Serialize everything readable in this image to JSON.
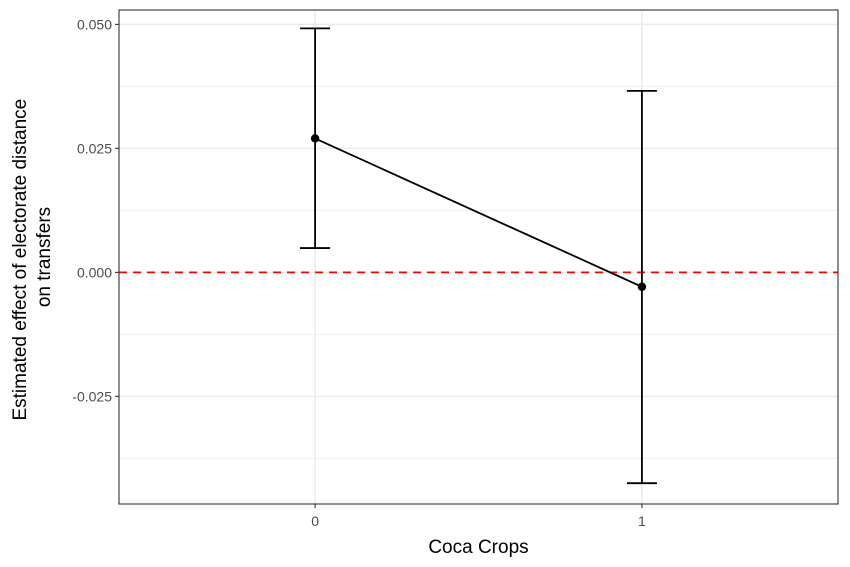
{
  "chart_data": {
    "type": "line",
    "title": "",
    "xlabel": "Coca Crops",
    "ylabel_lines": [
      "Estimated effect of electorate distance",
      "on transfers"
    ],
    "x_categories": [
      "0",
      "1"
    ],
    "x_range": [
      -0.6,
      1.6
    ],
    "y_range": [
      -0.0467,
      0.0529
    ],
    "y_ticks": [
      0.05,
      0.025,
      0.0,
      -0.025
    ],
    "y_tick_labels": [
      "0.050",
      "0.025",
      "0.000",
      "-0.025"
    ],
    "y_minor_ticks": [
      0.0375,
      0.0125,
      -0.0125,
      -0.0375
    ],
    "grid": true,
    "points": [
      {
        "x": 0,
        "estimate": 0.027,
        "lower": 0.0049,
        "upper": 0.0492
      },
      {
        "x": 1,
        "estimate": -0.0029,
        "lower": -0.0425,
        "upper": 0.0366
      }
    ],
    "reference_line": {
      "y": 0.0,
      "color": "#ff0000",
      "style": "dashed"
    },
    "colors": {
      "series": "#000000",
      "grid": "#ebebeb",
      "panel_border": "#333333"
    }
  }
}
